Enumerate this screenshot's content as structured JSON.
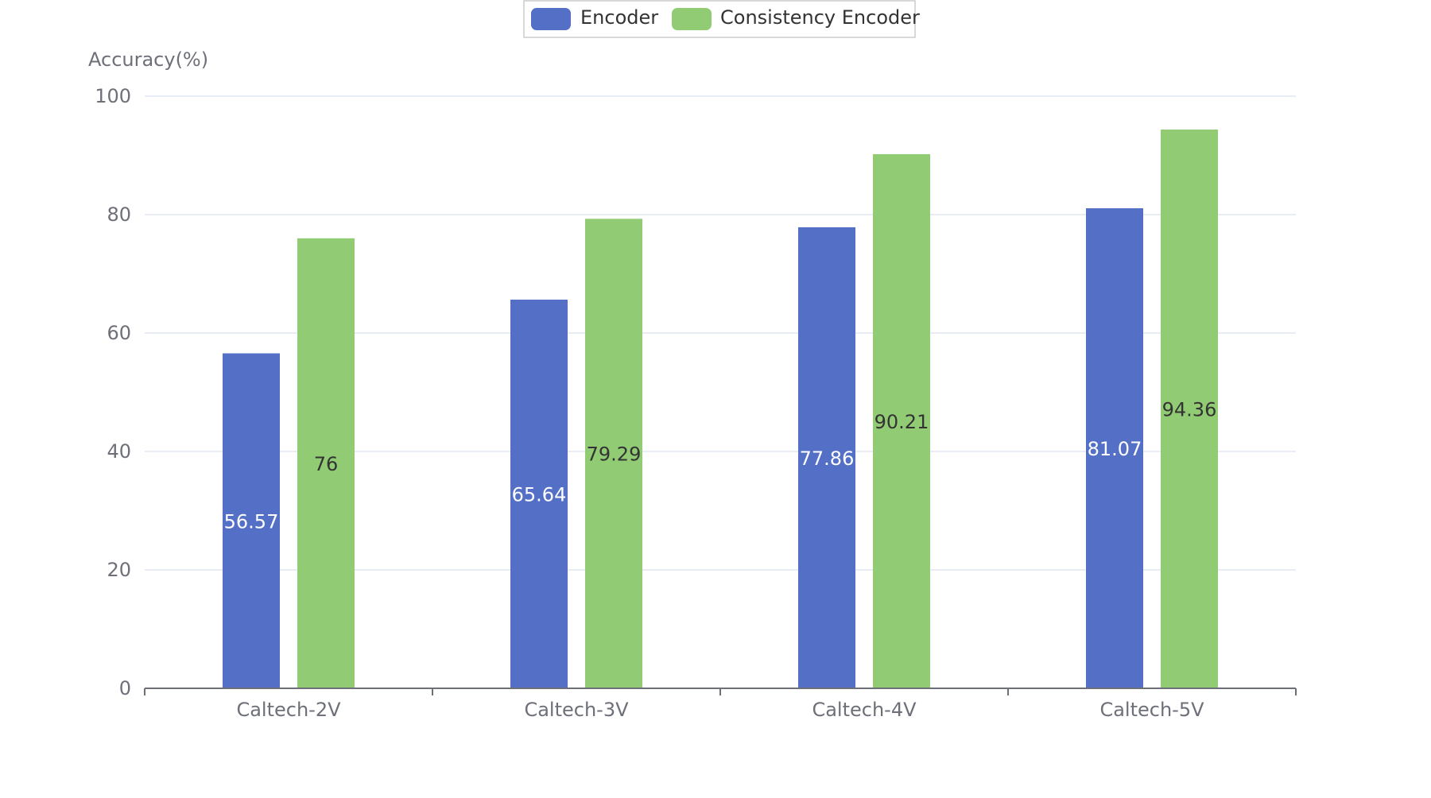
{
  "chart_data": {
    "type": "bar",
    "ylabel": "Accuracy(%)",
    "ylim": [
      0,
      100
    ],
    "yticks": [
      0,
      20,
      40,
      60,
      80,
      100
    ],
    "grid": true,
    "legend_position": "top-center",
    "categories": [
      "Caltech-2V",
      "Caltech-3V",
      "Caltech-4V",
      "Caltech-5V"
    ],
    "series": [
      {
        "name": "Encoder",
        "color": "#5470c6",
        "label_color": "#ffffff",
        "values": [
          56.57,
          65.64,
          77.86,
          81.07
        ],
        "labels": [
          "56.57",
          "65.64",
          "77.86",
          "81.07"
        ]
      },
      {
        "name": "Consistency Encoder",
        "color": "#91cc75",
        "label_color": "#333333",
        "values": [
          76,
          79.29,
          90.21,
          94.36
        ],
        "labels": [
          "76",
          "79.29",
          "90.21",
          "94.36"
        ]
      }
    ]
  },
  "colors": {
    "axis": "#6e7079",
    "grid": "#e0e6f1",
    "tick_label": "#6e7079",
    "legend_border": "#cccccc",
    "legend_text": "#333333"
  }
}
